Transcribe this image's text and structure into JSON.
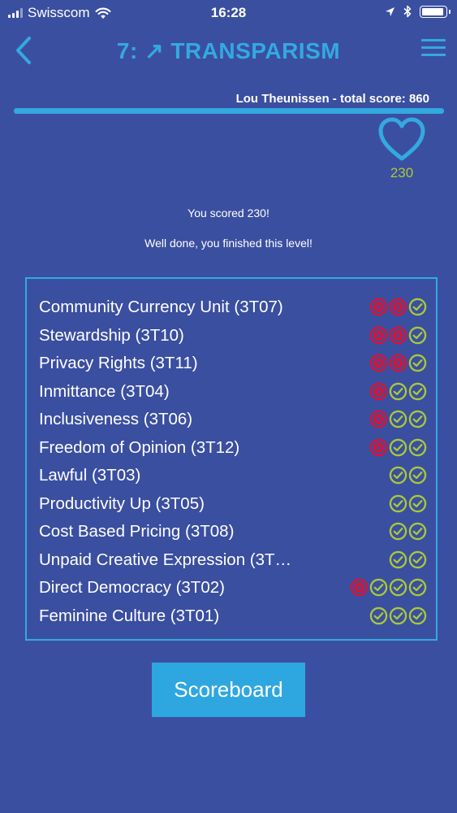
{
  "status_bar": {
    "carrier": "Swisscom",
    "time": "16:28"
  },
  "header": {
    "title": "7: ↗ TRANSPARISM"
  },
  "player": {
    "score_text": "Lou Theunissen - total score: 860",
    "level_progress_fraction": 1.0
  },
  "heart": {
    "score": "230"
  },
  "messages": {
    "scored": "You scored 230!",
    "finished": "Well done, you finished this level!"
  },
  "colors": {
    "background": "#3b4fa0",
    "accent": "#33a9e0",
    "success": "#a9c93a",
    "failure": "#e0102f"
  },
  "results": [
    {
      "label": "Community Currency Unit (3T07)",
      "marks": [
        "wrong",
        "wrong",
        "right"
      ]
    },
    {
      "label": "Stewardship (3T10)",
      "marks": [
        "wrong",
        "wrong",
        "right"
      ]
    },
    {
      "label": "Privacy Rights (3T11)",
      "marks": [
        "wrong",
        "wrong",
        "right"
      ]
    },
    {
      "label": "Inmittance (3T04)",
      "marks": [
        "wrong",
        "right",
        "right"
      ]
    },
    {
      "label": "Inclusiveness (3T06)",
      "marks": [
        "wrong",
        "right",
        "right"
      ]
    },
    {
      "label": "Freedom of Opinion (3T12)",
      "marks": [
        "wrong",
        "right",
        "right"
      ]
    },
    {
      "label": "Lawful (3T03)",
      "marks": [
        "right",
        "right"
      ]
    },
    {
      "label": "Productivity Up (3T05)",
      "marks": [
        "right",
        "right"
      ]
    },
    {
      "label": "Cost Based Pricing (3T08)",
      "marks": [
        "right",
        "right"
      ]
    },
    {
      "label": "Unpaid Creative Expression (3T…",
      "marks": [
        "right",
        "right"
      ]
    },
    {
      "label": "Direct Democracy (3T02)",
      "marks": [
        "wrong",
        "right",
        "right",
        "right"
      ]
    },
    {
      "label": "Feminine Culture (3T01)",
      "marks": [
        "right",
        "right",
        "right"
      ]
    }
  ],
  "buttons": {
    "scoreboard": "Scoreboard"
  }
}
